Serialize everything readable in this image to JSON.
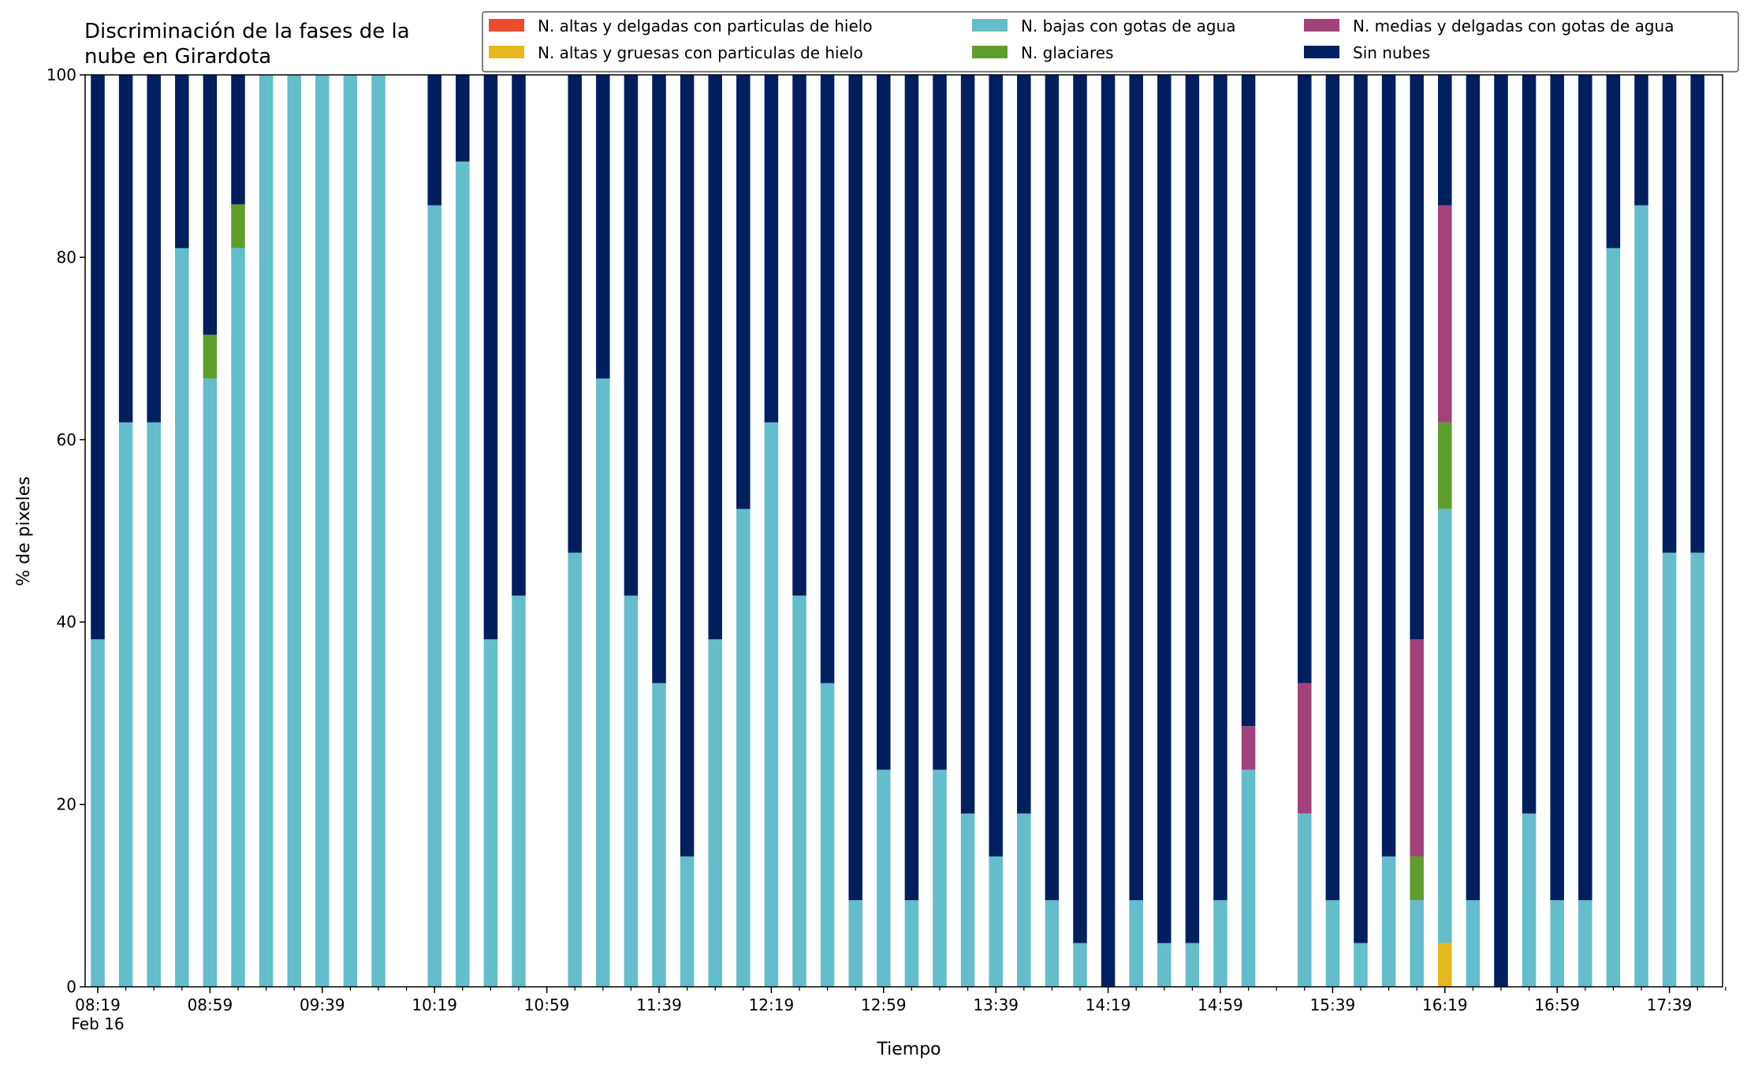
{
  "chart_data": {
    "type": "bar",
    "stacked": true,
    "title": "Discriminación de la fases de la\nnube en Girardota",
    "xlabel": "Tiempo",
    "ylabel": "% de pixeles",
    "ylim": [
      0,
      100
    ],
    "yticks": [
      0,
      20,
      40,
      60,
      80,
      100
    ],
    "x_tick_labels": [
      {
        "label": "08:19",
        "sub": "Feb 16",
        "slot": 0
      },
      {
        "label": "08:59",
        "slot": 4
      },
      {
        "label": "09:39",
        "slot": 8
      },
      {
        "label": "10:19",
        "slot": 12
      },
      {
        "label": "10:59",
        "slot": 16
      },
      {
        "label": "11:39",
        "slot": 20
      },
      {
        "label": "12:19",
        "slot": 24
      },
      {
        "label": "12:59",
        "slot": 28
      },
      {
        "label": "13:39",
        "slot": 32
      },
      {
        "label": "14:19",
        "slot": 36
      },
      {
        "label": "14:59",
        "slot": 40
      },
      {
        "label": "15:39",
        "slot": 44
      },
      {
        "label": "16:19",
        "slot": 48
      },
      {
        "label": "16:59",
        "slot": 52
      },
      {
        "label": "17:39",
        "slot": 56
      }
    ],
    "grid": false,
    "legend_position": "top-right",
    "legend": [
      {
        "name": "N. altas y delgadas con particulas de hielo",
        "color": "#ee4b2b",
        "key": "altas_delgadas"
      },
      {
        "name": "N. altas y gruesas con particulas de hielo",
        "color": "#e5b81c",
        "key": "altas_gruesas"
      },
      {
        "name": "N. bajas con gotas de agua",
        "color": "#64bdca",
        "key": "bajas"
      },
      {
        "name": "N. glaciares",
        "color": "#5e9e2c",
        "key": "glaciares"
      },
      {
        "name": "N. medias y delgadas con gotas de agua",
        "color": "#a2427a",
        "key": "medias"
      },
      {
        "name": "Sin nubes",
        "color": "#001f5f",
        "key": "sin_nubes"
      }
    ],
    "stack_order": [
      "altas_gruesas",
      "bajas",
      "glaciares",
      "medias",
      "altas_delgadas",
      "sin_nubes"
    ],
    "bars": [
      {
        "slot": 0,
        "values": {
          "bajas": 38.1,
          "sin_nubes": 61.9
        }
      },
      {
        "slot": 1,
        "values": {
          "bajas": 61.9,
          "sin_nubes": 38.1
        }
      },
      {
        "slot": 2,
        "values": {
          "bajas": 61.9,
          "sin_nubes": 38.1
        }
      },
      {
        "slot": 3,
        "values": {
          "bajas": 81.0,
          "sin_nubes": 19.0
        }
      },
      {
        "slot": 4,
        "values": {
          "bajas": 66.7,
          "glaciares": 4.8,
          "sin_nubes": 28.5
        }
      },
      {
        "slot": 5,
        "values": {
          "bajas": 81.0,
          "glaciares": 4.8,
          "sin_nubes": 14.2
        }
      },
      {
        "slot": 6,
        "values": {
          "bajas": 100
        }
      },
      {
        "slot": 7,
        "values": {
          "bajas": 100
        }
      },
      {
        "slot": 8,
        "values": {
          "bajas": 100
        }
      },
      {
        "slot": 9,
        "values": {
          "bajas": 100
        }
      },
      {
        "slot": 10,
        "values": {
          "bajas": 100
        }
      },
      {
        "slot": 12,
        "values": {
          "bajas": 85.7,
          "sin_nubes": 14.3
        }
      },
      {
        "slot": 13,
        "values": {
          "bajas": 90.5,
          "sin_nubes": 9.5
        }
      },
      {
        "slot": 14,
        "values": {
          "bajas": 38.1,
          "sin_nubes": 61.9
        }
      },
      {
        "slot": 15,
        "values": {
          "bajas": 42.9,
          "sin_nubes": 57.1
        }
      },
      {
        "slot": 17,
        "values": {
          "bajas": 47.6,
          "sin_nubes": 52.4
        }
      },
      {
        "slot": 18,
        "values": {
          "bajas": 66.7,
          "sin_nubes": 33.3
        }
      },
      {
        "slot": 19,
        "values": {
          "bajas": 42.9,
          "sin_nubes": 57.1
        }
      },
      {
        "slot": 20,
        "values": {
          "bajas": 33.3,
          "sin_nubes": 66.7
        }
      },
      {
        "slot": 21,
        "values": {
          "bajas": 14.3,
          "sin_nubes": 85.7
        }
      },
      {
        "slot": 22,
        "values": {
          "bajas": 38.1,
          "sin_nubes": 61.9
        }
      },
      {
        "slot": 23,
        "values": {
          "bajas": 52.4,
          "sin_nubes": 47.6
        }
      },
      {
        "slot": 24,
        "values": {
          "bajas": 61.9,
          "sin_nubes": 38.1
        }
      },
      {
        "slot": 25,
        "values": {
          "bajas": 42.9,
          "sin_nubes": 57.1
        }
      },
      {
        "slot": 26,
        "values": {
          "bajas": 33.3,
          "sin_nubes": 66.7
        }
      },
      {
        "slot": 27,
        "values": {
          "bajas": 9.5,
          "sin_nubes": 90.5
        }
      },
      {
        "slot": 28,
        "values": {
          "bajas": 23.8,
          "sin_nubes": 76.2
        }
      },
      {
        "slot": 29,
        "values": {
          "bajas": 9.5,
          "sin_nubes": 90.5
        }
      },
      {
        "slot": 30,
        "values": {
          "bajas": 23.8,
          "sin_nubes": 76.2
        }
      },
      {
        "slot": 31,
        "values": {
          "bajas": 19.0,
          "sin_nubes": 81.0
        }
      },
      {
        "slot": 32,
        "values": {
          "bajas": 14.3,
          "sin_nubes": 85.7
        }
      },
      {
        "slot": 33,
        "values": {
          "bajas": 19.0,
          "sin_nubes": 81.0
        }
      },
      {
        "slot": 34,
        "values": {
          "bajas": 9.5,
          "sin_nubes": 90.5
        }
      },
      {
        "slot": 35,
        "values": {
          "bajas": 4.8,
          "sin_nubes": 95.2
        }
      },
      {
        "slot": 36,
        "values": {
          "sin_nubes": 100
        }
      },
      {
        "slot": 37,
        "values": {
          "bajas": 9.5,
          "sin_nubes": 90.5
        }
      },
      {
        "slot": 38,
        "values": {
          "bajas": 4.8,
          "sin_nubes": 95.2
        }
      },
      {
        "slot": 39,
        "values": {
          "bajas": 4.8,
          "sin_nubes": 95.2
        }
      },
      {
        "slot": 40,
        "values": {
          "bajas": 9.5,
          "sin_nubes": 90.5
        }
      },
      {
        "slot": 41,
        "values": {
          "bajas": 23.8,
          "medias": 4.8,
          "sin_nubes": 71.4
        }
      },
      {
        "slot": 43,
        "values": {
          "bajas": 19.0,
          "medias": 14.3,
          "sin_nubes": 66.7
        }
      },
      {
        "slot": 44,
        "values": {
          "bajas": 9.5,
          "sin_nubes": 90.5
        }
      },
      {
        "slot": 45,
        "values": {
          "bajas": 4.8,
          "sin_nubes": 95.2
        }
      },
      {
        "slot": 46,
        "values": {
          "bajas": 14.3,
          "sin_nubes": 85.7
        }
      },
      {
        "slot": 47,
        "values": {
          "bajas": 9.5,
          "glaciares": 4.8,
          "medias": 23.8,
          "sin_nubes": 61.9
        }
      },
      {
        "slot": 48,
        "values": {
          "altas_gruesas": 4.8,
          "bajas": 47.6,
          "glaciares": 9.5,
          "medias": 23.8,
          "sin_nubes": 14.3
        }
      },
      {
        "slot": 49,
        "values": {
          "bajas": 9.5,
          "sin_nubes": 90.5
        }
      },
      {
        "slot": 50,
        "values": {
          "sin_nubes": 100
        }
      },
      {
        "slot": 51,
        "values": {
          "bajas": 19.0,
          "sin_nubes": 81.0
        }
      },
      {
        "slot": 52,
        "values": {
          "bajas": 9.5,
          "sin_nubes": 90.5
        }
      },
      {
        "slot": 53,
        "values": {
          "bajas": 9.5,
          "sin_nubes": 90.5
        }
      },
      {
        "slot": 54,
        "values": {
          "bajas": 81.0,
          "sin_nubes": 19.0
        }
      },
      {
        "slot": 55,
        "values": {
          "bajas": 85.7,
          "sin_nubes": 14.3
        }
      },
      {
        "slot": 56,
        "values": {
          "bajas": 47.6,
          "sin_nubes": 52.4
        }
      },
      {
        "slot": 57,
        "values": {
          "bajas": 47.6,
          "sin_nubes": 52.4
        }
      }
    ]
  }
}
